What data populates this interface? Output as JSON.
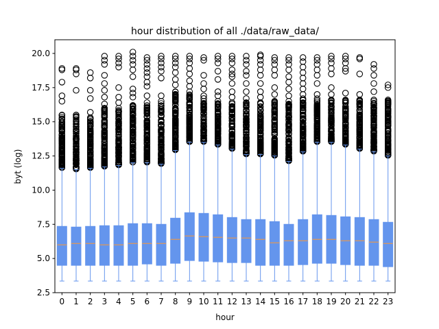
{
  "chart_data": {
    "type": "boxplot",
    "title": "hour distribution of all ./data/raw_data/",
    "xlabel": "hour",
    "ylabel": "byt (log)",
    "ylim": [
      2.5,
      21.0
    ],
    "yticks": [
      2.5,
      5.0,
      7.5,
      10.0,
      12.5,
      15.0,
      17.5,
      20.0
    ],
    "grid": false,
    "legend": "none",
    "colors": {
      "box": "#6495ed",
      "median": "#ff9a33",
      "whisker": "#6495ed",
      "flier": "#000000"
    },
    "categories": [
      "0",
      "1",
      "2",
      "3",
      "4",
      "5",
      "6",
      "7",
      "8",
      "9",
      "10",
      "11",
      "12",
      "13",
      "14",
      "15",
      "16",
      "17",
      "18",
      "19",
      "20",
      "21",
      "22",
      "23"
    ],
    "boxes": [
      {
        "q1": 4.5,
        "median": 6.0,
        "q3": 7.35,
        "whislo": 3.35,
        "whishi": 11.6,
        "dense_top": 15.5,
        "outliers": [
          16.5,
          16.9,
          17.9,
          18.8,
          18.9
        ]
      },
      {
        "q1": 4.5,
        "median": 6.1,
        "q3": 7.3,
        "whislo": 3.35,
        "whishi": 11.5,
        "dense_top": 15.5,
        "outliers": [
          17.3,
          18.5,
          18.8,
          18.9
        ]
      },
      {
        "q1": 4.5,
        "median": 6.1,
        "q3": 7.35,
        "whislo": 3.35,
        "whishi": 11.6,
        "dense_top": 15.3,
        "outliers": [
          15.7,
          16.7,
          17.3,
          18.2,
          18.6
        ]
      },
      {
        "q1": 4.5,
        "median": 6.0,
        "q3": 7.4,
        "whislo": 3.35,
        "whishi": 11.7,
        "dense_top": 16.0,
        "outliers": [
          16.3,
          16.8,
          17.3,
          17.8,
          18.4,
          19.2,
          19.5,
          19.8
        ]
      },
      {
        "q1": 4.5,
        "median": 6.0,
        "q3": 7.4,
        "whislo": 3.35,
        "whishi": 11.8,
        "dense_top": 16.0,
        "outliers": [
          16.4,
          16.8,
          17.5,
          19.0,
          19.3,
          19.6,
          19.8
        ]
      },
      {
        "q1": 4.5,
        "median": 6.1,
        "q3": 7.55,
        "whislo": 3.35,
        "whishi": 12.0,
        "dense_top": 16.2,
        "outliers": [
          16.8,
          17.1,
          17.4,
          18.3,
          18.8,
          19.2,
          19.5,
          19.8,
          20.1
        ]
      },
      {
        "q1": 4.6,
        "median": 6.1,
        "q3": 7.55,
        "whislo": 3.35,
        "whishi": 12.0,
        "dense_top": 16.4,
        "outliers": [
          16.9,
          17.6,
          17.9,
          18.3,
          18.6,
          18.9,
          19.2,
          19.5,
          19.7
        ]
      },
      {
        "q1": 4.5,
        "median": 6.1,
        "q3": 7.5,
        "whislo": 3.35,
        "whishi": 11.9,
        "dense_top": 16.5,
        "outliers": [
          16.9,
          18.2,
          18.7,
          19.0,
          19.3,
          19.6,
          19.8
        ]
      },
      {
        "q1": 4.65,
        "median": 6.4,
        "q3": 7.95,
        "whislo": 3.35,
        "whishi": 12.9,
        "dense_top": 17.2,
        "outliers": [
          17.7,
          18.1,
          18.6,
          19.0,
          19.3,
          19.6,
          19.8
        ]
      },
      {
        "q1": 4.85,
        "median": 6.65,
        "q3": 8.35,
        "whislo": 3.35,
        "whishi": 13.5,
        "dense_top": 17.2,
        "outliers": [
          17.6,
          18.0,
          18.5,
          18.9,
          19.3,
          19.6,
          19.8
        ]
      },
      {
        "q1": 4.8,
        "median": 6.6,
        "q3": 8.3,
        "whislo": 3.35,
        "whishi": 13.5,
        "dense_top": 16.5,
        "outliers": [
          16.7,
          16.9,
          17.4,
          17.8,
          18.4,
          19.5,
          19.7
        ]
      },
      {
        "q1": 4.75,
        "median": 6.55,
        "q3": 8.2,
        "whislo": 3.35,
        "whishi": 13.3,
        "dense_top": 16.5,
        "outliers": [
          16.9,
          17.2,
          18.1,
          18.7,
          19.3,
          19.6,
          19.8
        ]
      },
      {
        "q1": 4.7,
        "median": 6.5,
        "q3": 8.0,
        "whislo": 3.35,
        "whishi": 13.0,
        "dense_top": 16.4,
        "outliers": [
          16.8,
          17.2,
          17.8,
          18.3,
          18.5,
          18.8,
          19.3,
          19.6,
          19.8
        ]
      },
      {
        "q1": 4.7,
        "median": 6.5,
        "q3": 7.85,
        "whislo": 3.35,
        "whishi": 12.6,
        "dense_top": 16.4,
        "outliers": [
          16.7,
          17.2,
          17.8,
          18.4,
          18.7,
          19.2,
          19.5,
          19.8
        ]
      },
      {
        "q1": 4.5,
        "median": 6.4,
        "q3": 7.85,
        "whislo": 3.35,
        "whishi": 12.6,
        "dense_top": 16.4,
        "outliers": [
          16.8,
          17.2,
          17.8,
          18.4,
          18.8,
          19.2,
          19.5,
          19.8,
          19.9
        ]
      },
      {
        "q1": 4.5,
        "median": 6.15,
        "q3": 7.7,
        "whislo": 3.35,
        "whishi": 12.5,
        "dense_top": 16.5,
        "outliers": [
          17.0,
          17.5,
          18.4,
          18.8,
          19.2,
          19.5,
          19.7
        ]
      },
      {
        "q1": 4.5,
        "median": 6.3,
        "q3": 7.5,
        "whislo": 3.35,
        "whishi": 12.1,
        "dense_top": 16.5,
        "outliers": [
          16.9,
          17.4,
          17.9,
          18.3,
          18.8,
          19.2,
          19.5,
          19.7
        ]
      },
      {
        "q1": 4.55,
        "median": 6.3,
        "q3": 7.85,
        "whislo": 3.35,
        "whishi": 12.8,
        "dense_top": 16.7,
        "outliers": [
          17.0,
          17.4,
          17.8,
          18.2,
          18.6,
          19.0,
          19.4,
          19.7
        ]
      },
      {
        "q1": 4.65,
        "median": 6.4,
        "q3": 8.2,
        "whislo": 3.35,
        "whishi": 13.5,
        "dense_top": 16.7,
        "outliers": [
          17.0,
          17.8,
          18.4,
          18.8,
          19.2,
          19.5,
          19.7
        ]
      },
      {
        "q1": 4.65,
        "median": 6.4,
        "q3": 8.15,
        "whislo": 3.35,
        "whishi": 13.5,
        "dense_top": 16.6,
        "outliers": [
          17.0,
          17.5,
          18.5,
          18.9,
          19.3,
          19.6,
          19.8
        ]
      },
      {
        "q1": 4.55,
        "median": 6.3,
        "q3": 8.05,
        "whislo": 3.35,
        "whishi": 13.3,
        "dense_top": 16.6,
        "outliers": [
          17.1,
          18.7,
          18.9,
          19.3,
          19.6,
          19.8
        ]
      },
      {
        "q1": 4.5,
        "median": 6.3,
        "q3": 8.0,
        "whislo": 3.35,
        "whishi": 13.0,
        "dense_top": 16.6,
        "outliers": [
          17.0,
          18.5,
          19.6,
          19.7
        ]
      },
      {
        "q1": 4.5,
        "median": 6.2,
        "q3": 7.85,
        "whislo": 3.35,
        "whishi": 12.8,
        "dense_top": 16.6,
        "outliers": [
          17.2,
          17.8,
          18.4,
          18.9,
          19.2
        ]
      },
      {
        "q1": 4.4,
        "median": 6.1,
        "q3": 7.65,
        "whislo": 3.35,
        "whishi": 12.5,
        "dense_top": 16.6,
        "outliers": [
          17.5,
          17.7
        ]
      }
    ]
  }
}
